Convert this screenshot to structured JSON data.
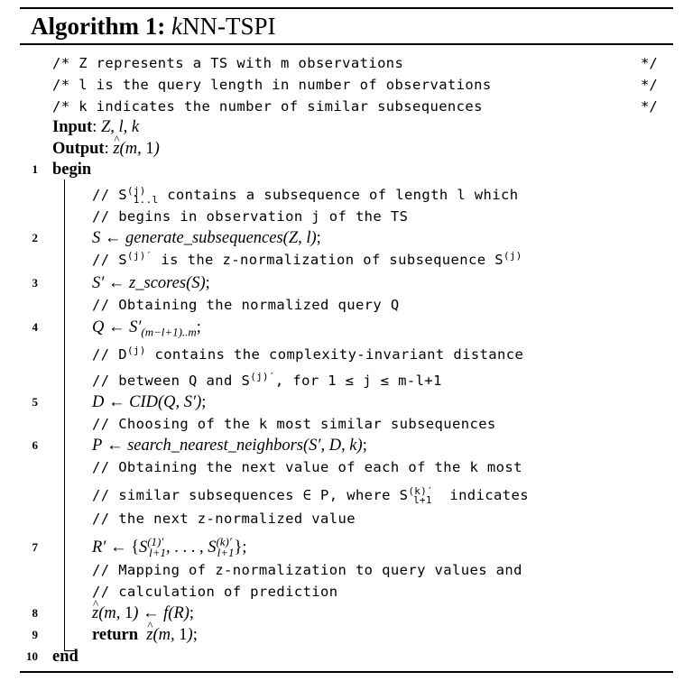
{
  "algorithm": {
    "label": "Algorithm 1:",
    "name_italic": "k",
    "name_rest": "NN-TSPI"
  },
  "header_comments": [
    "/* Z represents a TS with m observations",
    "/* l is the query length in number of observations",
    "/* k indicates the number of similar subsequences"
  ],
  "comment_close": "*/",
  "io": {
    "input_label": "Input",
    "output_label": "Output"
  },
  "keywords": {
    "begin": "begin",
    "end": "end",
    "return": "return"
  },
  "functions": {
    "generate": "generate_subsequences",
    "zscores": "z_scores",
    "cid": "CID",
    "search": "search_nearest_neighbors"
  },
  "body_comments": {
    "c1a": "contains a subsequence of length l which",
    "c1b": "// begins in observation j of the TS",
    "c2": "is the z-normalization of subsequence",
    "c3": "// Obtaining the normalized query Q",
    "c4a": "contains the complexity-invariant distance",
    "c4b": "// between Q and",
    "c4c": ", for 1 ≤ j ≤ m-l+1",
    "c5": "// Choosing of the k most similar subsequences",
    "c6a": "// Obtaining the next value of each of the k most",
    "c6b": "// similar subsequences ∈ P, where",
    "c6c": "indicates",
    "c6d": "// the next z-normalized value",
    "c7a": "// Mapping of z-normalization to query values and",
    "c7b": "// calculation of prediction"
  },
  "line_numbers": [
    "1",
    "2",
    "3",
    "4",
    "5",
    "6",
    "7",
    "8",
    "9",
    "10"
  ]
}
